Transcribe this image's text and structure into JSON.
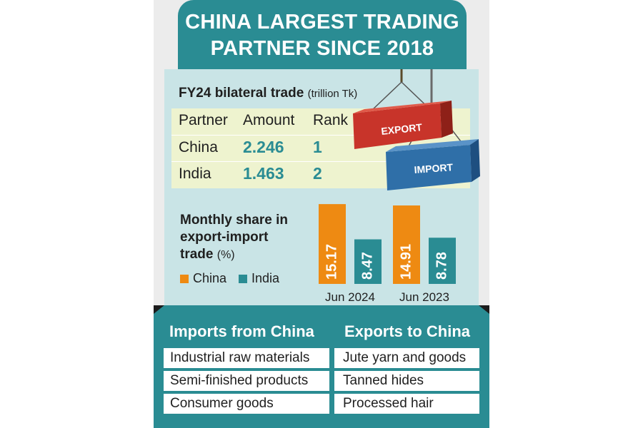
{
  "title": {
    "line1": "CHINA LARGEST TRADING",
    "line2": "PARTNER SINCE 2018"
  },
  "bilateral": {
    "heading": "FY24 bilateral trade",
    "unit": "(trillion Tk)",
    "headers": [
      "Partner",
      "Amount",
      "Rank"
    ],
    "rows": [
      {
        "partner": "China",
        "amount": "2.246",
        "rank": "1"
      },
      {
        "partner": "India",
        "amount": "1.463",
        "rank": "2"
      }
    ]
  },
  "containers": {
    "export_label": "EXPORT",
    "import_label": "IMPORT"
  },
  "chart_data": {
    "type": "bar",
    "title": "Monthly share in export-import trade",
    "title_lines": [
      "Monthly share in",
      "export-import",
      "trade"
    ],
    "unit": "(%)",
    "categories": [
      "Jun 2024",
      "Jun 2023"
    ],
    "series": [
      {
        "name": "China",
        "color": "#ee8a12",
        "values": [
          15.17,
          14.91
        ]
      },
      {
        "name": "India",
        "color": "#2a8c93",
        "values": [
          8.47,
          8.78
        ]
      }
    ],
    "value_labels": [
      [
        "15.17",
        "14.91"
      ],
      [
        "8.47",
        "8.78"
      ]
    ],
    "ylim": [
      0,
      16
    ],
    "grid": false,
    "legend_position": "left"
  },
  "trade_lists": {
    "imports_heading": "Imports from China",
    "exports_heading": "Exports to China",
    "imports": [
      "Industrial raw materials",
      "Semi-finished products",
      "Consumer goods"
    ],
    "exports": [
      "Jute yarn and goods",
      "Tanned hides",
      "Processed hair"
    ]
  },
  "colors": {
    "teal": "#2a8c93",
    "orange": "#ee8a12",
    "panel": "#c9e4e6",
    "table": "#eef3cf",
    "export_container": "#c8342a",
    "import_container": "#2f6fa8"
  }
}
